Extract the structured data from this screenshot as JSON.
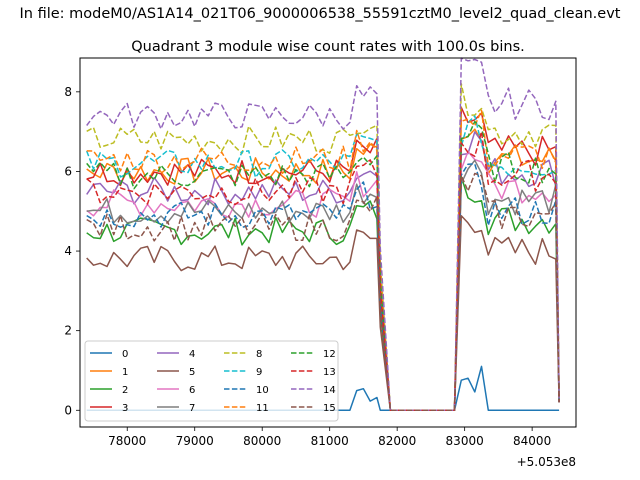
{
  "chart_data": {
    "type": "line",
    "suptitle": "In file: modeM0/AS1A14_021T06_9000006538_55591cztM0_level2_quad_clean.evt",
    "title": "Quadrant 3 module wise count rates with 100.0s bins.",
    "xlabel": "",
    "ylabel": "",
    "x_offset_label": "+5.053e8",
    "xlim": [
      77300,
      84650
    ],
    "ylim": [
      -0.42,
      8.85
    ],
    "xticks": [
      78000,
      79000,
      80000,
      81000,
      82000,
      83000,
      84000
    ],
    "xtick_labels": [
      "78000",
      "79000",
      "80000",
      "81000",
      "82000",
      "83000",
      "84000"
    ],
    "yticks": [
      0,
      2,
      4,
      6,
      8
    ],
    "ytick_labels": [
      "0",
      "2",
      "4",
      "6",
      "8"
    ],
    "grid": false,
    "legend": {
      "position": "lower-left",
      "columns": 4
    },
    "segments": {
      "seg1": {
        "x_start": 77400,
        "x_end": 81700,
        "step": 100
      },
      "gap": {
        "x_start": 81900,
        "x_end": 82800,
        "step": 100
      },
      "seg2": {
        "x_start": 82950,
        "x_end": 84350,
        "step": 100
      },
      "end_x": 84400
    },
    "series": [
      {
        "name": "0",
        "color": "#1f77b4",
        "dash": "solid",
        "base1": 0.0,
        "base2": 0.0,
        "end": 0.0
      },
      {
        "name": "1",
        "color": "#ff7f0e",
        "dash": "solid",
        "base1": 6.0,
        "base2": 6.3,
        "end": 0.3
      },
      {
        "name": "2",
        "color": "#2ca02c",
        "dash": "solid",
        "base1": 4.5,
        "base2": 4.8,
        "end": 0.2
      },
      {
        "name": "3",
        "color": "#d62728",
        "dash": "solid",
        "base1": 6.0,
        "base2": 6.5,
        "end": 0.3
      },
      {
        "name": "4",
        "color": "#9467bd",
        "dash": "solid",
        "base1": 5.5,
        "base2": 6.0,
        "end": 0.3
      },
      {
        "name": "5",
        "color": "#8c564b",
        "dash": "solid",
        "base1": 3.8,
        "base2": 4.0,
        "end": 0.2
      },
      {
        "name": "6",
        "color": "#e377c2",
        "dash": "solid",
        "base1": 5.2,
        "base2": 5.6,
        "end": 0.3
      },
      {
        "name": "7",
        "color": "#7f7f7f",
        "dash": "solid",
        "base1": 5.0,
        "base2": 5.3,
        "end": 0.2
      },
      {
        "name": "8",
        "color": "#bcbd22",
        "dash": "dashed",
        "base1": 6.8,
        "base2": 7.0,
        "end": 0.3
      },
      {
        "name": "9",
        "color": "#17becf",
        "dash": "dashed",
        "base1": 6.2,
        "base2": 6.2,
        "end": 0.3
      },
      {
        "name": "10",
        "color": "#1f77b4",
        "dash": "dashed",
        "base1": 4.9,
        "base2": 5.0,
        "end": 0.2
      },
      {
        "name": "11",
        "color": "#ff7f0e",
        "dash": "dashed",
        "base1": 6.3,
        "base2": 6.4,
        "end": 0.3
      },
      {
        "name": "12",
        "color": "#2ca02c",
        "dash": "dashed",
        "base1": 5.9,
        "base2": 6.1,
        "end": 0.3
      },
      {
        "name": "13",
        "color": "#d62728",
        "dash": "dashed",
        "base1": 5.5,
        "base2": 5.9,
        "end": 0.2
      },
      {
        "name": "14",
        "color": "#9467bd",
        "dash": "dashed",
        "base1": 7.4,
        "base2": 7.7,
        "end": 0.3
      },
      {
        "name": "15",
        "color": "#8c564b",
        "dash": "dashed",
        "base1": 4.6,
        "base2": 4.9,
        "end": 0.2
      }
    ]
  }
}
